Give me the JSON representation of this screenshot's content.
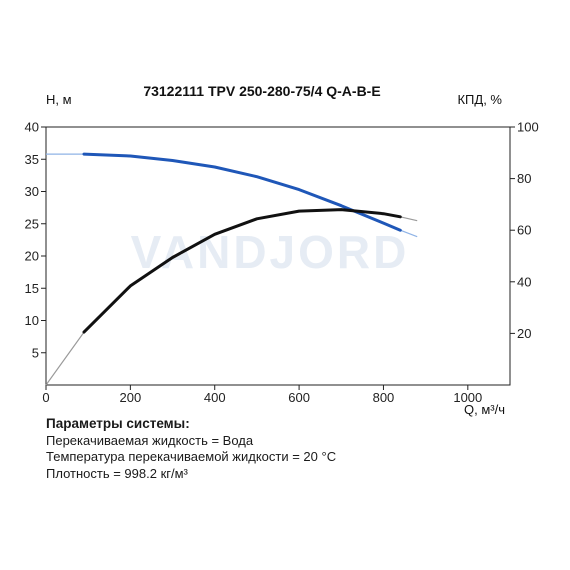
{
  "chart_data": {
    "type": "line",
    "title": "73122111 TPV 250-280-75/4 Q-A-B-E",
    "xlabel": "Q, м³/ч",
    "ylabel_left": "Н, м",
    "ylabel_right": "КПД, %",
    "watermark": "VANDJORD",
    "xlim": [
      0,
      1100
    ],
    "ylim_left": [
      0,
      40
    ],
    "ylim_right": [
      0,
      100
    ],
    "x_ticks": [
      0,
      200,
      400,
      600,
      800,
      1000
    ],
    "y_left_ticks": [
      5,
      10,
      15,
      20,
      25,
      30,
      35,
      40
    ],
    "y_left_tick_labels": [
      "5",
      "10",
      "15",
      "20",
      "25",
      "30",
      "35",
      "40"
    ],
    "y_right_ticks": [
      20,
      40,
      60,
      80,
      100
    ],
    "grid": false,
    "series": [
      {
        "color": "#1f57b8",
        "axis": "left",
        "operating_range": [
          90,
          840
        ],
        "x": [
          0,
          90,
          200,
          300,
          400,
          500,
          600,
          700,
          800,
          840,
          880
        ],
        "values": [
          35.8,
          35.8,
          35.5,
          34.8,
          33.8,
          32.3,
          30.3,
          27.8,
          25.1,
          24.0,
          23.0
        ]
      },
      {
        "color": "#111111",
        "axis": "right",
        "operating_range": [
          90,
          840
        ],
        "x": [
          0,
          90,
          200,
          300,
          400,
          500,
          600,
          700,
          800,
          840,
          880
        ],
        "values": [
          0,
          20.5,
          38.4,
          49.4,
          58.4,
          64.4,
          67.4,
          68.0,
          66.4,
          65.2,
          63.7
        ]
      }
    ]
  },
  "params": {
    "heading": "Параметры системы:",
    "lines": [
      "Перекачиваемая жидкость = Вода",
      "Температура перекачиваемой жидкости = 20 °C",
      "Плотность = 998.2 кг/м³"
    ]
  }
}
